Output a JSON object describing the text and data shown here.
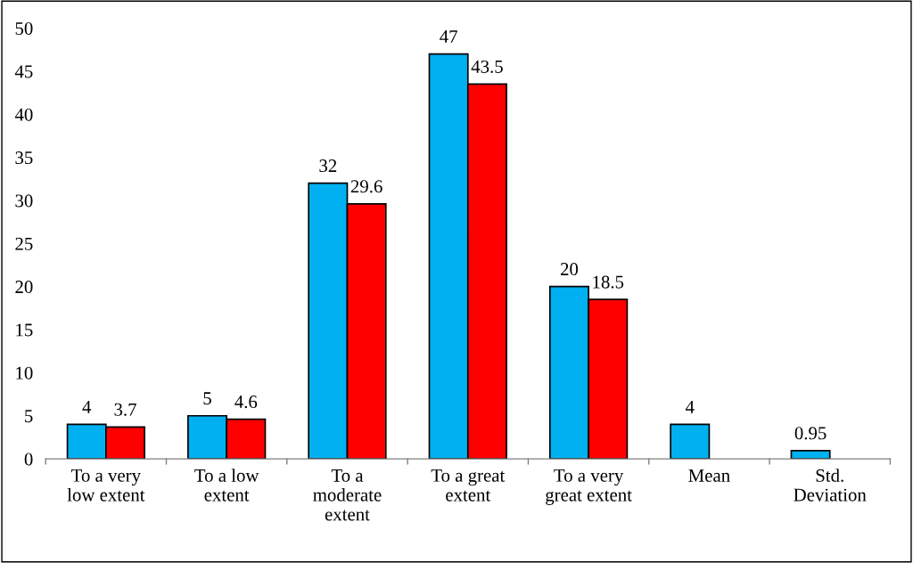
{
  "chart_data": {
    "type": "bar",
    "categories": [
      "To a very\nlow extent",
      "To a low\nextent",
      "To a\nmoderate\nextent",
      "To a great\nextent",
      "To a very\ngreat extent",
      "Mean",
      "Std.\nDeviation"
    ],
    "series": [
      {
        "color": "#00b0f0",
        "values": [
          4,
          5,
          32,
          47,
          20,
          4,
          0.95
        ]
      },
      {
        "color": "#ff0000",
        "values": [
          3.7,
          4.6,
          29.6,
          43.5,
          18.5,
          null,
          null
        ]
      }
    ],
    "ylim": [
      0,
      50
    ],
    "yticks": [
      0,
      5,
      10,
      15,
      20,
      25,
      30,
      35,
      40,
      45,
      50
    ],
    "grid": false,
    "legend": false,
    "data_labels": true
  }
}
